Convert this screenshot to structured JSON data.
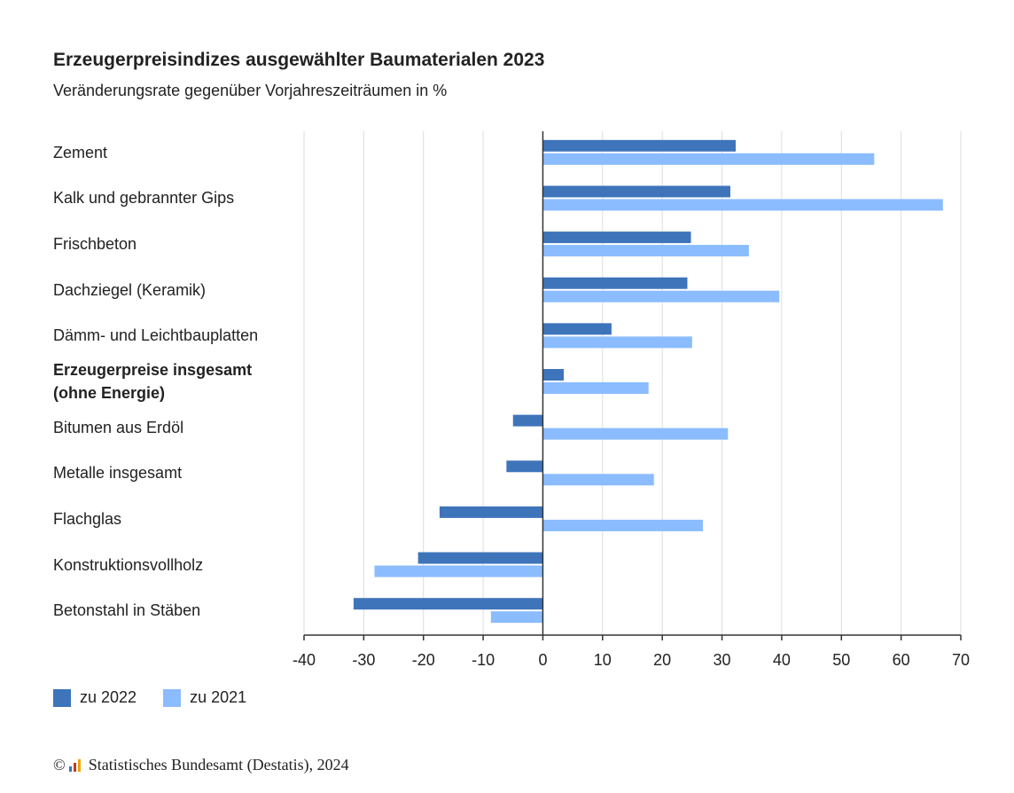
{
  "chart_data": {
    "type": "bar",
    "orientation": "horizontal",
    "title": "Erzeugerpreisindizes ausgewählter Baumaterialen 2023",
    "subtitle": "Veränderungsrate gegenüber Vorjahreszeiträumen in %",
    "categories": [
      "Zement",
      "Kalk und gebrannter Gips",
      "Frischbeton",
      "Dachziegel (Keramik)",
      "Dämm- und Leichtbauplatten",
      "Erzeugerpreise insgesamt\n(ohne Energie)",
      "Bitumen aus Erdöl",
      "Metalle insgesamt",
      "Flachglas",
      "Konstruktionsvollholz",
      "Betonstahl in Stäben"
    ],
    "bold_categories": [
      5
    ],
    "series": [
      {
        "name": "zu 2022",
        "color": "#3e74ba",
        "values": [
          32.3,
          31.4,
          24.8,
          24.2,
          11.5,
          3.5,
          -5.0,
          -6.1,
          -17.3,
          -20.9,
          -31.7
        ]
      },
      {
        "name": "zu 2021",
        "color": "#8abcff",
        "values": [
          55.5,
          67.0,
          34.5,
          39.6,
          25.0,
          17.7,
          31.0,
          18.6,
          26.8,
          -28.2,
          -8.7
        ]
      }
    ],
    "xlim": [
      -40,
      70
    ],
    "xticks": [
      -40,
      -30,
      -20,
      -10,
      0,
      10,
      20,
      30,
      40,
      50,
      60,
      70
    ],
    "grid": true,
    "legend_position": "bottom-left"
  },
  "copyright": {
    "symbol": "©",
    "text": "Statistisches Bundesamt (Destatis), 2024"
  },
  "colors": {
    "grid": "#dddddd",
    "axis": "#333333",
    "text": "#222222"
  }
}
